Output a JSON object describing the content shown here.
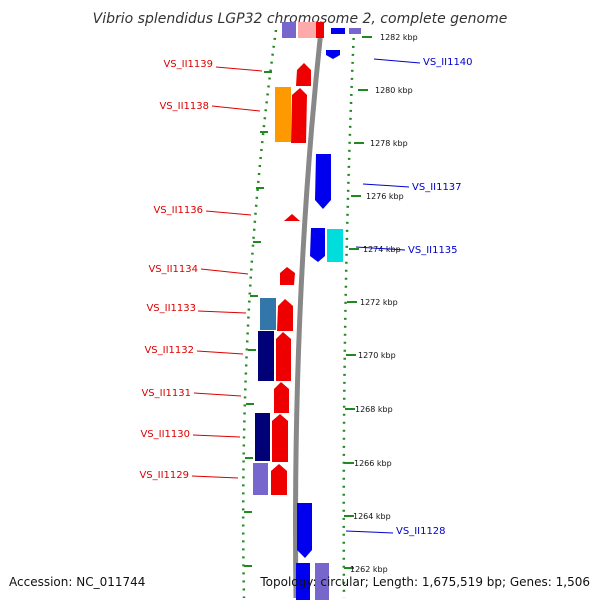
{
  "map": {
    "title": "Vibrio splendidus LGP32 chromosome 2, complete genome",
    "accession": "Accession: NC_011744",
    "topology": "Topology: circular; Length: 1,675,519 bp; Genes: 1,506",
    "colors": {
      "background": "#ffffff",
      "label_left": "#dd0000",
      "label_right": "#0000cc",
      "tick": "#228822",
      "backbone": "#888888",
      "gene_red": "#ee0000",
      "gene_blue": "#0000ee",
      "gene_orange": "#ff9900",
      "gene_cyan": "#00dddd",
      "gene_navy": "#000077",
      "gene_steel": "#3377aa",
      "gene_lavender": "#7766cc",
      "gene_pink": "#ffaaaa"
    },
    "scale_labels": [
      "1282 kbp",
      "1280 kbp",
      "1278 kbp",
      "1276 kbp",
      "1274 kbp",
      "1272 kbp",
      "1270 kbp",
      "1268 kbp",
      "1266 kbp",
      "1264 kbp",
      "1262 kbp"
    ],
    "left_labels": [
      "VS_II1139",
      "VS_II1138",
      "VS_II1136",
      "VS_II1134",
      "VS_II1133",
      "VS_II1132",
      "VS_II1131",
      "VS_II1130",
      "VS_II1129"
    ],
    "right_labels": [
      "VS_II1140",
      "VS_II1137",
      "VS_II1135",
      "VS_II1128"
    ]
  }
}
